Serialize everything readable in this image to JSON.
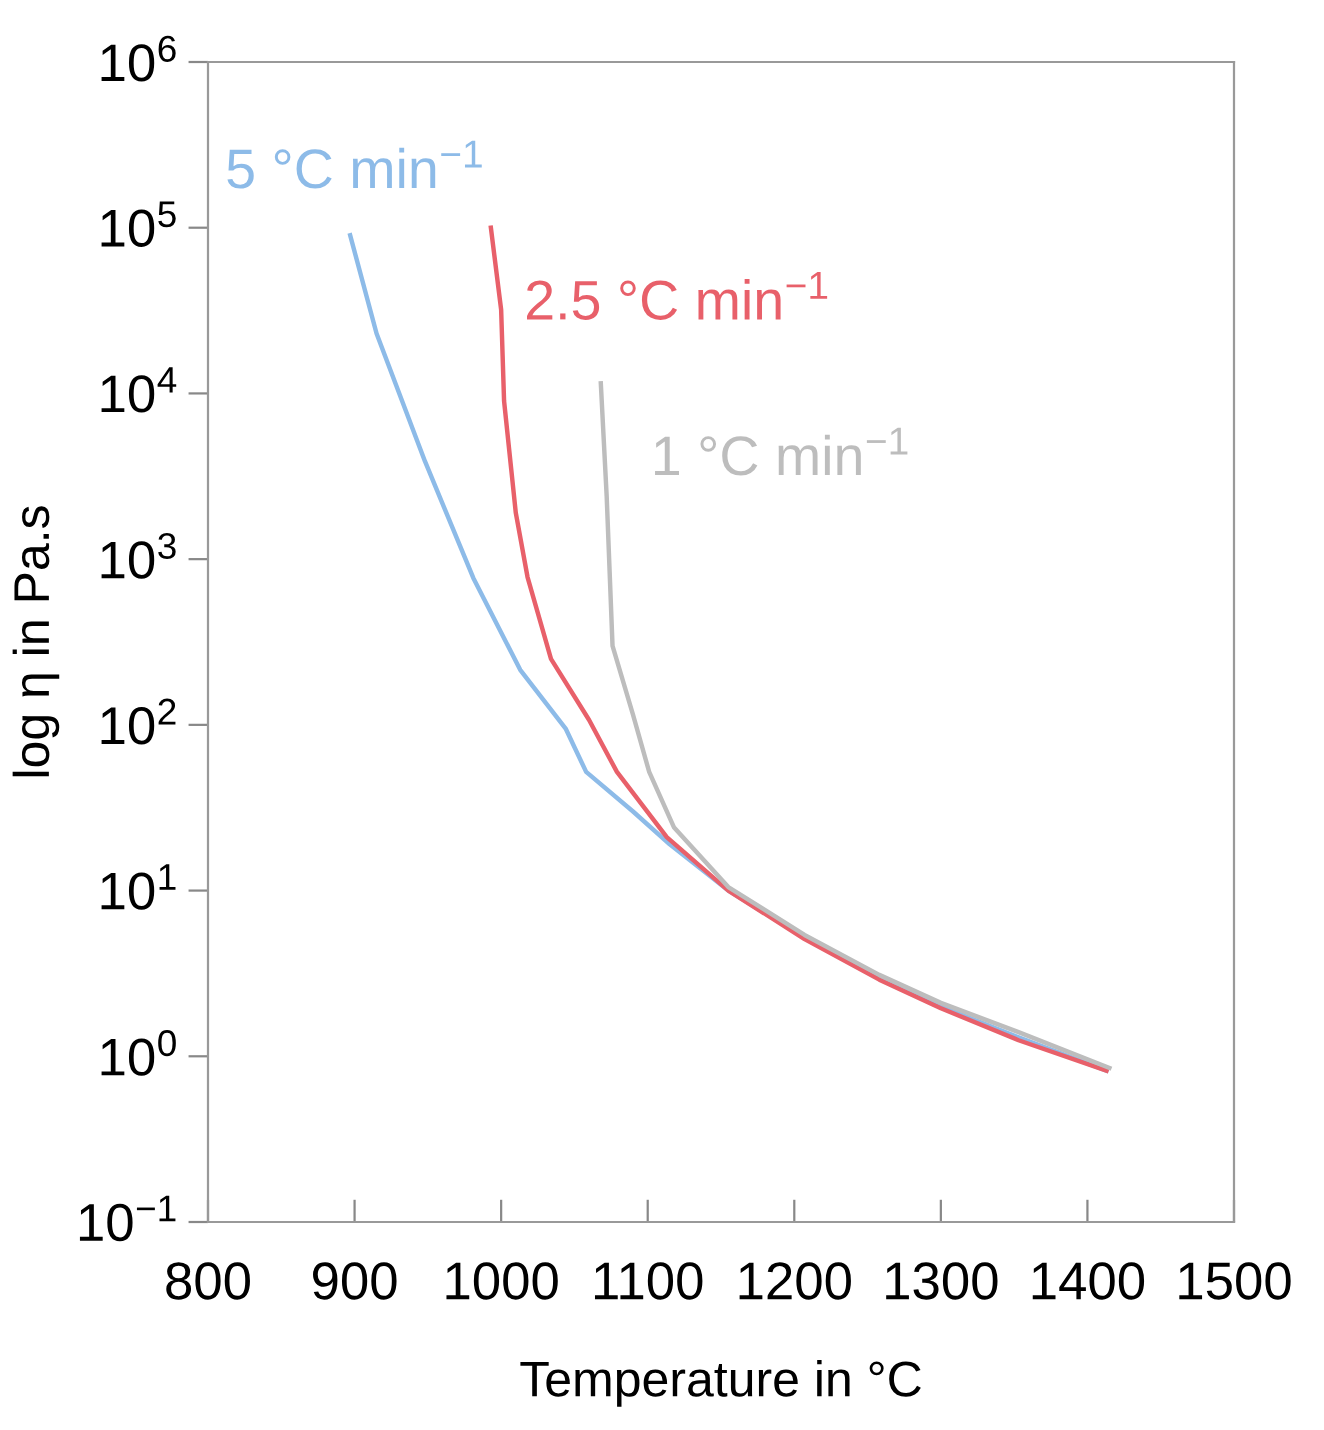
{
  "chart_data": {
    "type": "line",
    "xlabel": "Temperature in °C",
    "ylabel": "log η in Pa.s",
    "log": "y",
    "grid": false,
    "legend": false,
    "marker": "none",
    "line_style": "solid",
    "xlim": [
      800,
      1500
    ],
    "xticks": [
      800,
      900,
      1000,
      1100,
      1200,
      1300,
      1400,
      1500
    ],
    "ylim": [
      0.1,
      1000000
    ],
    "yticks": [
      {
        "value": 0.1,
        "label": "10$^{−1}$"
      },
      {
        "value": 1,
        "label": "10$^{0}$"
      },
      {
        "value": 10,
        "label": "10$^{1}$"
      },
      {
        "value": 100,
        "label": "10$^{2}$"
      },
      {
        "value": 1000,
        "label": "10$^{3}$"
      },
      {
        "value": 10000,
        "label": "10$^{4}$"
      },
      {
        "value": 100000,
        "label": "10$^{5}$"
      },
      {
        "value": 1000000,
        "label": "10$^{6}$"
      }
    ],
    "series": [
      {
        "name": "5 °C min$^{−1}$",
        "color": "#8dbbe8",
        "x": [
          897,
          915,
          948,
          981,
          1013,
          1044,
          1058,
          1090,
          1115,
          1155,
          1207,
          1258,
          1300,
          1353,
          1413
        ],
        "values": [
          90000,
          23000,
          3900,
          770,
          215,
          95,
          52,
          30,
          19,
          10,
          5.2,
          3.0,
          2.0,
          1.3,
          0.82
        ]
      },
      {
        "name": "2.5 °C min$^{−1}$",
        "color": "#e8606a",
        "x": [
          993,
          1000,
          1002,
          1010,
          1018,
          1034,
          1060,
          1079,
          1113,
          1155,
          1207,
          1258,
          1300,
          1353,
          1413
        ],
        "values": [
          100000,
          32000,
          9000,
          1900,
          780,
          250,
          107,
          52,
          21,
          10,
          5.1,
          2.9,
          1.95,
          1.25,
          0.82
        ]
      },
      {
        "name": "1 °C min$^{−1}$",
        "color": "#bdbdbd",
        "x": [
          1068,
          1072,
          1076,
          1090,
          1101,
          1118,
          1155,
          1207,
          1258,
          1300,
          1353,
          1415
        ],
        "values": [
          11500,
          2400,
          300,
          115,
          52,
          24,
          10.5,
          5.4,
          3.1,
          2.1,
          1.4,
          0.85
        ]
      }
    ]
  }
}
